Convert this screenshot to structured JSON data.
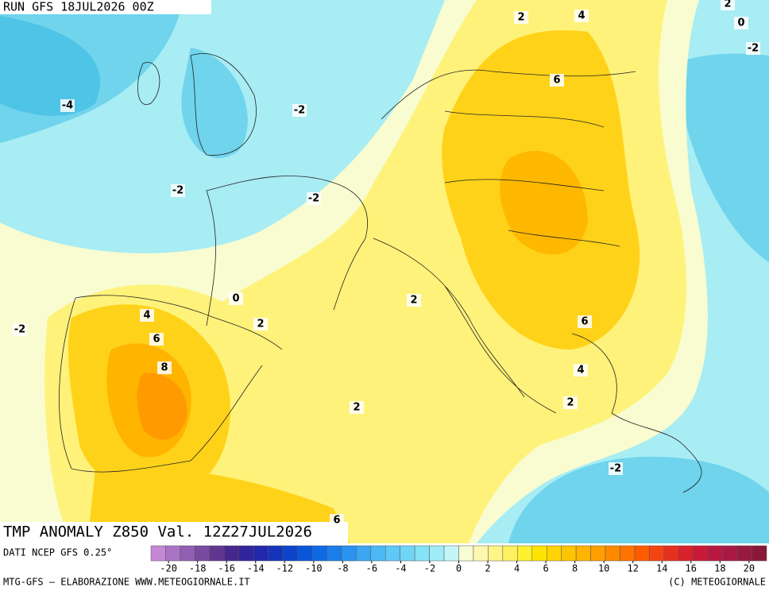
{
  "header": {
    "run": "RUN GFS 18JUL2026 00Z",
    "field": "TMP ANOMALY Z850 Val. 12Z27JUL2026"
  },
  "contour_labels": [
    "2",
    "4",
    "2",
    "0",
    "-2",
    "6",
    "-4",
    "-2",
    "-2",
    "-2",
    "0",
    "2",
    "4",
    "2",
    "-2",
    "6",
    "6",
    "8",
    "4",
    "2",
    "2",
    "-2",
    "6"
  ],
  "colorbar": {
    "colors": [
      "#c488d4",
      "#aa74c4",
      "#9060b2",
      "#784aa0",
      "#60368e",
      "#46288c",
      "#30249c",
      "#2228ac",
      "#1634bc",
      "#0c44cc",
      "#0856da",
      "#0e6ae4",
      "#1a7eea",
      "#2a92f0",
      "#3ca6f2",
      "#4eb8f4",
      "#5ec8f6",
      "#70d6f6",
      "#86e2f6",
      "#a0ecf6",
      "#c4f6f8",
      "#f6fcd4",
      "#fff8b0",
      "#fff488",
      "#fff060",
      "#fff030",
      "#ffe400",
      "#ffd400",
      "#ffc400",
      "#ffb400",
      "#ffa000",
      "#ff8a00",
      "#ff7400",
      "#ff5c00",
      "#f44414",
      "#e6301e",
      "#d8222c",
      "#c81a38",
      "#b81840",
      "#a81a44",
      "#981a40",
      "#8a1838"
    ],
    "ticks": [
      -20,
      -18,
      -16,
      -14,
      -12,
      -10,
      -8,
      -6,
      -4,
      -2,
      0,
      2,
      4,
      6,
      8,
      10,
      12,
      14,
      16,
      18,
      20
    ]
  },
  "footer": {
    "source": "DATI NCEP GFS 0.25°",
    "credit": "MTG-GFS — ELABORAZIONE WWW.METEOGIORNALE.IT",
    "copyright": "(C) METEOGIORNALE"
  }
}
